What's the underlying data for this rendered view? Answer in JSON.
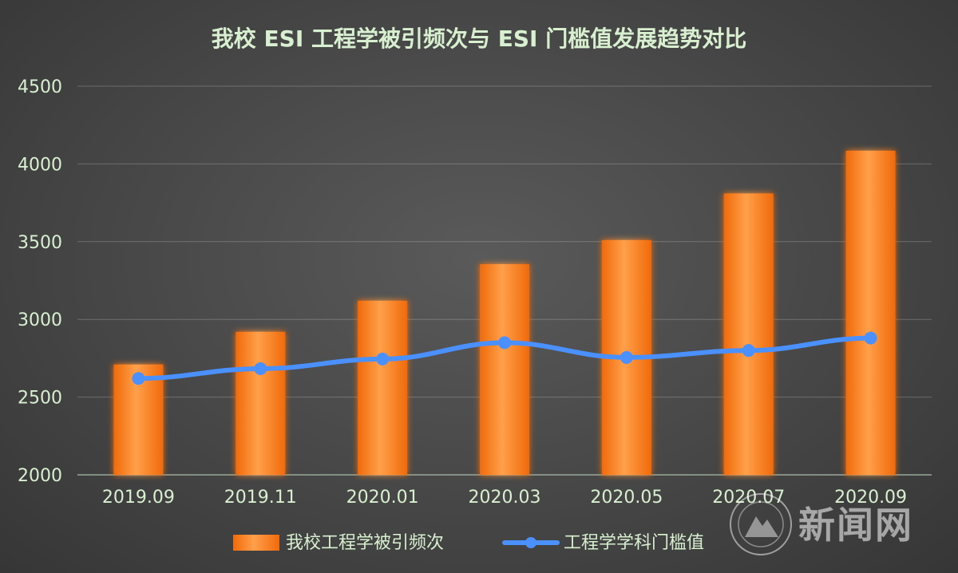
{
  "chart_data": {
    "type": "bar",
    "title": "我校 ESI 工程学被引频次与 ESI 门槛值发展趋势对比",
    "xlabel": "",
    "ylabel": "",
    "categories": [
      "2019.09",
      "2019.11",
      "2020.01",
      "2020.03",
      "2020.05",
      "2020.07",
      "2020.09"
    ],
    "ylim": [
      2000,
      4500
    ],
    "yticks": [
      2000,
      2500,
      3000,
      3500,
      4000,
      4500
    ],
    "grid": true,
    "legend_position": "bottom",
    "series": [
      {
        "name": "我校工程学被引频次",
        "type": "bar",
        "color": "#f47f1d",
        "values": [
          2710,
          2920,
          3120,
          3355,
          3510,
          3810,
          4085
        ]
      },
      {
        "name": "工程学学科门槛值",
        "type": "line",
        "color": "#4a90ff",
        "values": [
          2620,
          2683,
          2745,
          2850,
          2755,
          2800,
          2880
        ]
      }
    ]
  },
  "watermark": {
    "text": "新闻网",
    "icon": "university-seal-icon"
  }
}
